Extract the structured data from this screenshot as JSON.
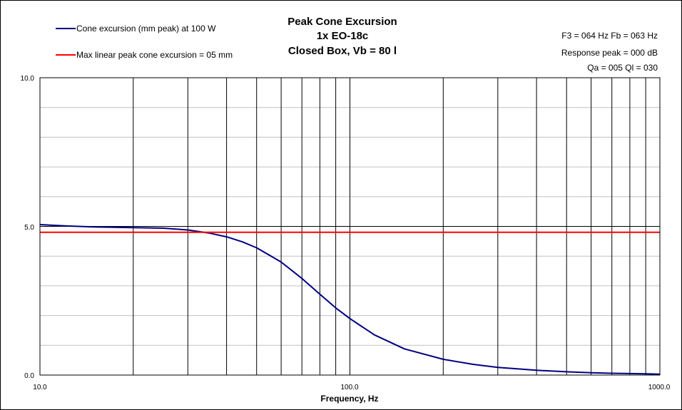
{
  "chart_data": {
    "type": "line",
    "title_lines": [
      "Peak Cone Excursion",
      "1x EO-18c",
      "Closed Box, Vb = 80 l"
    ],
    "info_lines": [
      "F3 = 064 Hz  Fb = 063 Hz",
      "Response peak = 000 dB",
      "Qa = 005  Ql = 030"
    ],
    "xlabel": "Frequency, Hz",
    "ylabel": "",
    "x_scale": "log",
    "xlim": [
      10,
      1000
    ],
    "ylim": [
      0,
      10
    ],
    "x_tick_labels": [
      "10.0",
      "100.0",
      "1000.0"
    ],
    "y_tick_labels": [
      "0.0",
      "5.0",
      "10.0"
    ],
    "grid": true,
    "legend_position": "top-left",
    "series": [
      {
        "name": "Cone excursion (mm peak) at 100 W",
        "color": "#000080",
        "x": [
          10,
          12,
          15,
          20,
          25,
          30,
          35,
          40,
          45,
          50,
          60,
          70,
          80,
          90,
          100,
          120,
          150,
          200,
          250,
          300,
          400,
          500,
          600,
          700,
          800,
          900,
          1000
        ],
        "y": [
          5.06,
          5.02,
          4.98,
          4.96,
          4.94,
          4.88,
          4.78,
          4.65,
          4.48,
          4.28,
          3.8,
          3.25,
          2.72,
          2.26,
          1.9,
          1.35,
          0.88,
          0.53,
          0.36,
          0.26,
          0.16,
          0.11,
          0.08,
          0.06,
          0.05,
          0.04,
          0.03
        ]
      },
      {
        "name": "Max linear peak cone excursion = 05 mm",
        "color": "#ff0000",
        "x": [
          10,
          1000
        ],
        "y": [
          4.8,
          4.8
        ]
      }
    ]
  }
}
